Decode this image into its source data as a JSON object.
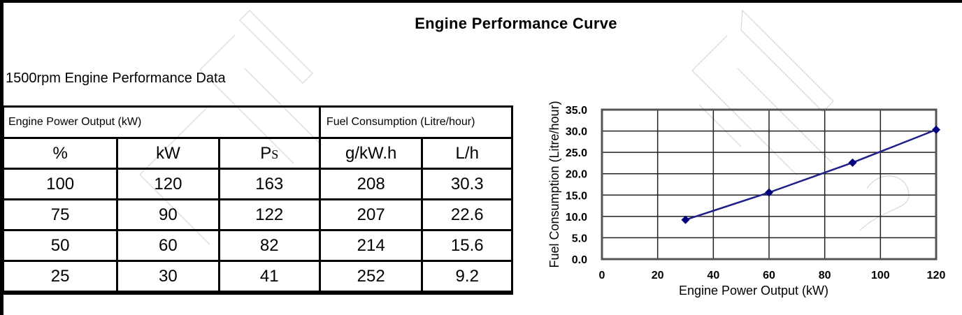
{
  "page": {
    "title": "Engine Performance Curve",
    "subtitle": "1500rpm Engine Performance Data"
  },
  "table": {
    "group_headers": [
      "Engine Power Output (kW)",
      "Fuel Consumption (Litre/hour)"
    ],
    "columns": [
      "%",
      "kW",
      "Ps",
      "g/kW.h",
      "L/h"
    ],
    "ps_main": "P",
    "ps_sub": "S",
    "rows": [
      [
        "100",
        "120",
        "163",
        "208",
        "30.3"
      ],
      [
        "75",
        "90",
        "122",
        "207",
        "22.6"
      ],
      [
        "50",
        "60",
        "82",
        "214",
        "15.6"
      ],
      [
        "25",
        "30",
        "41",
        "252",
        "9.2"
      ]
    ]
  },
  "chart_data": {
    "type": "line",
    "title": "",
    "xlabel": "Engine Power Output (kW)",
    "ylabel": "Fuel Consumption (Litre/hour)",
    "x": [
      30,
      60,
      90,
      120
    ],
    "series": [
      {
        "name": "Fuel Consumption (L/h)",
        "values": [
          9.2,
          15.6,
          22.6,
          30.3
        ],
        "color": "#1f1f8a",
        "marker": "diamond",
        "marker_color": "#000080"
      }
    ],
    "xlim": [
      0,
      120
    ],
    "ylim": [
      0,
      35
    ],
    "xticks": [
      "0",
      "20",
      "40",
      "60",
      "80",
      "100",
      "120"
    ],
    "yticks": [
      "0.0",
      "5.0",
      "10.0",
      "15.0",
      "20.0",
      "25.0",
      "30.0",
      "35.0"
    ],
    "grid": true,
    "legend": "none"
  }
}
